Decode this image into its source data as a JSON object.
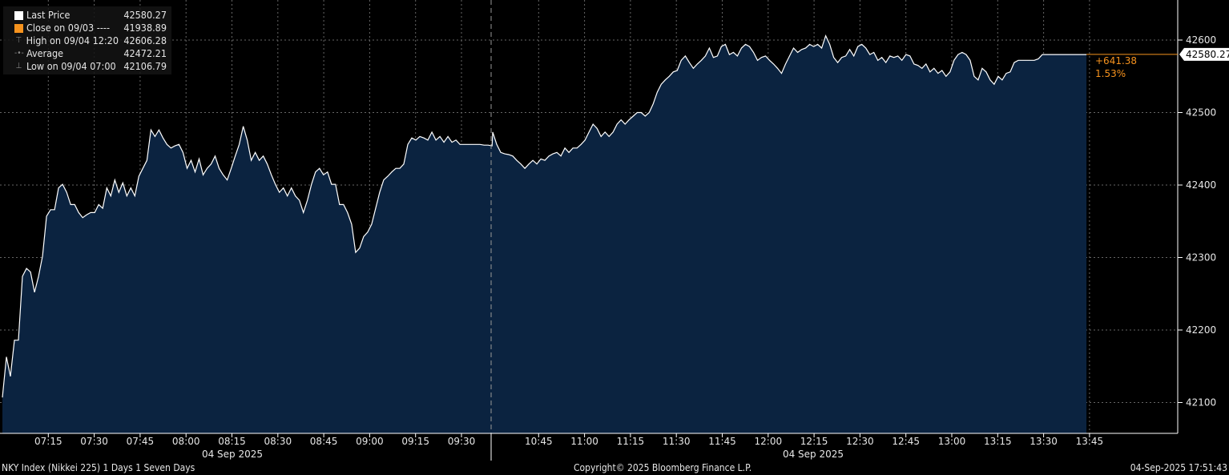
{
  "legend": [
    {
      "label": "Last Price",
      "value": "42580.27",
      "icon": "white-square",
      "color": "#ffffff"
    },
    {
      "label": "Close on 09/03 ----",
      "value": "41938.89",
      "icon": "orange-square",
      "color": "#f7931e"
    },
    {
      "label": "High on 09/04 12:20",
      "value": "42606.28",
      "icon": "high-marker-icon"
    },
    {
      "label": "Average",
      "value": "42472.21",
      "icon": "average-marker-icon"
    },
    {
      "label": "Low on 09/04 07:00",
      "value": "42106.79",
      "icon": "low-marker-icon"
    }
  ],
  "last_price_label": "42580.27",
  "change": {
    "abs": "+641.38",
    "pct": "1.53%",
    "color": "#f7931e"
  },
  "footer": {
    "left": "NKY Index (Nikkei 225) 1 Days 1 Seven Days",
    "center": "Copyright© 2025 Bloomberg Finance L.P.",
    "right": "04-Sep-2025 17:51:43"
  },
  "chart_data": {
    "type": "area",
    "line_color": "#ffffff",
    "fill_color": "#0b2340",
    "grid": true,
    "y_axis": "right",
    "legend_placement": "top-left",
    "ylim": [
      42050,
      42655
    ],
    "y_ticks": [
      "42100",
      "42200",
      "42300",
      "42400",
      "42500",
      "42600"
    ],
    "x_ticks": [
      "07:15",
      "07:30",
      "07:45",
      "08:00",
      "08:15",
      "08:30",
      "08:45",
      "09:00",
      "09:15",
      "09:30",
      "10:45",
      "11:00",
      "11:15",
      "11:30",
      "11:45",
      "12:00",
      "12:15",
      "12:30",
      "12:45",
      "13:00",
      "13:15",
      "13:30",
      "13:45"
    ],
    "date_labels": [
      "04 Sep 2025",
      "04 Sep 2025"
    ],
    "sessions": [
      {
        "start": "07:00",
        "end": "09:40",
        "values": [
          42107,
          42163,
          42136,
          42186,
          42186,
          42274,
          42285,
          42280,
          42252,
          42274,
          42302,
          42357,
          42366,
          42366,
          42396,
          42401,
          42390,
          42373,
          42373,
          42362,
          42355,
          42359,
          42362,
          42362,
          42373,
          42368,
          42396,
          42385,
          42407,
          42390,
          42403,
          42385,
          42396,
          42385,
          42412,
          42423,
          42434,
          42476,
          42467,
          42476,
          42465,
          42456,
          42451,
          42454,
          42456,
          42445,
          42423,
          42434,
          42418,
          42436,
          42414,
          42423,
          42429,
          42440,
          42423,
          42414,
          42407,
          42423,
          42440,
          42456,
          42481,
          42462,
          42434,
          42445,
          42434,
          42440,
          42429,
          42414,
          42401,
          42390,
          42396,
          42385,
          42396,
          42385,
          42379,
          42362,
          42379,
          42401,
          42418,
          42423,
          42414,
          42418,
          42401,
          42401,
          42373,
          42373,
          42362,
          42346,
          42307,
          42313,
          42329,
          42335,
          42346,
          42368,
          42390,
          42407,
          42412,
          42418,
          42423,
          42423,
          42429,
          42456,
          42465,
          42462,
          42467,
          42465,
          42462,
          42473,
          42462,
          42467,
          42459,
          42467,
          42459,
          42462,
          42456,
          42456,
          42456,
          42456,
          42456,
          42456,
          42455,
          42455,
          42454
        ]
      },
      {
        "start": "10:30",
        "end": "13:44",
        "values": [
          42473,
          42456,
          42445,
          42443,
          42442,
          42440,
          42434,
          42429,
          42423,
          42429,
          42434,
          42429,
          42436,
          42434,
          42440,
          42443,
          42445,
          42440,
          42451,
          42445,
          42451,
          42451,
          42456,
          42462,
          42473,
          42484,
          42478,
          42467,
          42473,
          42467,
          42473,
          42484,
          42490,
          42484,
          42490,
          42495,
          42500,
          42500,
          42495,
          42500,
          42512,
          42528,
          42539,
          42545,
          42550,
          42556,
          42558,
          42572,
          42578,
          42569,
          42561,
          42567,
          42572,
          42578,
          42589,
          42576,
          42578,
          42591,
          42594,
          42580,
          42583,
          42578,
          42589,
          42594,
          42591,
          42583,
          42572,
          42576,
          42578,
          42572,
          42567,
          42561,
          42554,
          42567,
          42578,
          42589,
          42583,
          42587,
          42589,
          42594,
          42591,
          42594,
          42589,
          42606,
          42594,
          42576,
          42569,
          42576,
          42578,
          42587,
          42578,
          42591,
          42594,
          42589,
          42580,
          42583,
          42572,
          42576,
          42569,
          42578,
          42576,
          42578,
          42572,
          42580,
          42578,
          42567,
          42565,
          42561,
          42567,
          42556,
          42561,
          42554,
          42558,
          42550,
          42556,
          42572,
          42580,
          42583,
          42580,
          42572,
          42550,
          42545,
          42561,
          42556,
          42545,
          42539,
          42550,
          42545,
          42554,
          42556,
          42569,
          42572,
          42572,
          42572,
          42572,
          42572,
          42574,
          42580,
          42580,
          42580,
          42580,
          42580,
          42580,
          42580,
          42580,
          42580,
          42580,
          42580,
          42580
        ]
      }
    ],
    "last_price": 42580.27
  }
}
